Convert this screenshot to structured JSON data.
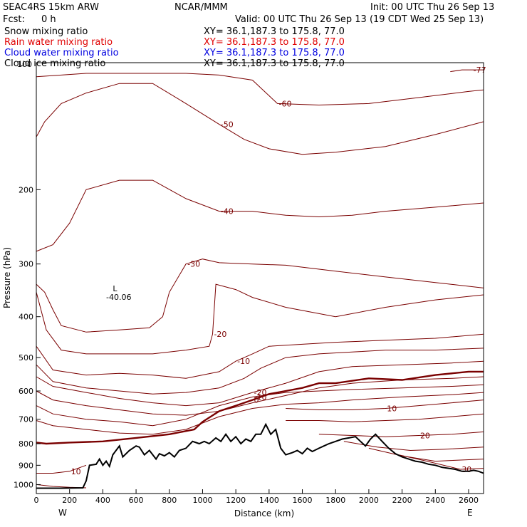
{
  "header": {
    "model": "SEAC4RS 15km ARW",
    "org": "NCAR/MMM",
    "init": "Init: 00 UTC Thu 26 Sep 13",
    "fcst_label": "Fcst:",
    "fcst_value": "0 h",
    "valid": "Valid: 00 UTC Thu 26 Sep 13 (19 CDT Wed 25 Sep 13)"
  },
  "fields": [
    {
      "name": "Snow mixing ratio",
      "xy": "XY=  36.1,187.3 to 175.8, 77.0",
      "color": "#000000"
    },
    {
      "name": "Rain water mixing ratio",
      "xy": "XY=  36.1,187.3 to 175.8, 77.0",
      "color": "#e00000"
    },
    {
      "name": "Cloud water mixing ratio",
      "xy": "XY=  36.1,187.3 to 175.8, 77.0",
      "color": "#0000e0"
    },
    {
      "name": "Cloud ice mixing ratio",
      "xy": "XY=  36.1,187.3 to 175.8, 77.0",
      "color": "#000000"
    }
  ],
  "colors": {
    "contour": "#7a0000",
    "zero_contour": "#7a0000",
    "terrain": "#000000",
    "frame": "#000000"
  },
  "chart_data": {
    "type": "line",
    "xlabel": "Distance (km)",
    "ylabel": "Pressure (hPa)",
    "xlim": [
      0,
      2690
    ],
    "ylim": [
      1050,
      100
    ],
    "y_scale": "log",
    "xticks": [
      "0",
      "200",
      "400",
      "600",
      "800",
      "1000",
      "1200",
      "1400",
      "1600",
      "1800",
      "2000",
      "2200",
      "2400",
      "2600"
    ],
    "yticks": [
      "200",
      "300",
      "400",
      "500",
      "600",
      "700",
      "800",
      "900",
      "1000"
    ],
    "top_tick_partial": "100",
    "end_labels": {
      "left": "W",
      "right": "E"
    },
    "low_label": {
      "text": "L",
      "value": "-40.06"
    },
    "series": [
      {
        "label": "-77",
        "x": [
          2490,
          2560,
          2620,
          2690
        ],
        "y": [
          105,
          104,
          104,
          104
        ]
      },
      {
        "label": "-60",
        "x": [
          0,
          300,
          600,
          900,
          1100,
          1300,
          1450,
          1700,
          2000,
          2300,
          2600,
          2690
        ],
        "y": [
          108,
          106,
          106,
          106,
          107,
          110,
          125,
          126,
          125,
          121,
          117,
          116
        ]
      },
      {
        "label": "-50",
        "x": [
          0,
          50,
          150,
          300,
          500,
          700,
          900,
          1100,
          1250,
          1400,
          1600,
          1800,
          2100,
          2400,
          2690
        ],
        "y": [
          150,
          138,
          125,
          118,
          112,
          112,
          125,
          140,
          152,
          160,
          165,
          163,
          158,
          148,
          138
        ]
      },
      {
        "label": "-40",
        "x": [
          0,
          100,
          200,
          300,
          500,
          700,
          900,
          1100,
          1300,
          1500,
          1700,
          1900,
          2100,
          2400,
          2690
        ],
        "y": [
          280,
          270,
          240,
          200,
          190,
          190,
          210,
          225,
          225,
          230,
          232,
          230,
          225,
          220,
          215
        ]
      },
      {
        "label": "-30",
        "x": [
          0,
          50,
          100,
          150,
          300,
          500,
          680,
          760,
          800,
          900,
          1000,
          1100,
          1300,
          1500,
          1800,
          2100,
          2400,
          2690
        ],
        "y": [
          335,
          350,
          385,
          420,
          435,
          430,
          425,
          400,
          350,
          300,
          292,
          298,
          300,
          302,
          312,
          322,
          332,
          342
        ]
      },
      {
        "label": "-20",
        "x": [
          0,
          60,
          150,
          300,
          500,
          700,
          900,
          1040,
          1060,
          1080,
          1200,
          1300,
          1500,
          1800,
          2100,
          2400,
          2690
        ],
        "y": [
          350,
          430,
          480,
          490,
          490,
          490,
          480,
          470,
          440,
          335,
          345,
          360,
          380,
          400,
          380,
          365,
          355
        ]
      },
      {
        "label": "-10",
        "x": [
          0,
          100,
          300,
          500,
          700,
          900,
          1100,
          1200,
          1300,
          1400,
          1600,
          1800,
          2100,
          2400,
          2690
        ],
        "y": [
          470,
          535,
          550,
          545,
          550,
          560,
          540,
          510,
          490,
          470,
          465,
          460,
          455,
          450,
          440
        ]
      },
      {
        "label": "",
        "x": [
          0,
          100,
          300,
          500,
          700,
          900,
          1100,
          1250,
          1350,
          1500,
          1700,
          1900,
          2100,
          2400,
          2690
        ],
        "y": [
          520,
          570,
          590,
          600,
          610,
          605,
          590,
          560,
          530,
          500,
          490,
          485,
          480,
          480,
          475
        ]
      },
      {
        "label": "-20",
        "x": [
          0,
          100,
          300,
          500,
          700,
          900,
          1100,
          1300,
          1500,
          1700,
          1900,
          2200,
          2500,
          2690
        ],
        "y": [
          555,
          585,
          605,
          625,
          640,
          650,
          640,
          605,
          575,
          540,
          525,
          520,
          515,
          510
        ]
      },
      {
        "label": "",
        "x": [
          0,
          100,
          300,
          500,
          700,
          900,
          1100,
          1300,
          1500,
          1700,
          1900,
          2200,
          2500,
          2690
        ],
        "y": [
          600,
          630,
          650,
          665,
          680,
          685,
          670,
          640,
          615,
          590,
          575,
          565,
          560,
          555
        ]
      },
      {
        "label": "-10",
        "x": [
          0,
          100,
          300,
          500,
          700,
          900,
          1100,
          1300,
          1500,
          1700,
          1900,
          2200,
          2500,
          2690
        ],
        "y": [
          650,
          680,
          700,
          710,
          725,
          700,
          650,
          620,
          605,
          600,
          595,
          590,
          585,
          580
        ]
      },
      {
        "label": "",
        "x": [
          0,
          100,
          300,
          500,
          700,
          900,
          1100,
          1300,
          1500,
          1700,
          1900,
          2200,
          2500,
          2690
        ],
        "y": [
          705,
          725,
          740,
          755,
          760,
          740,
          690,
          660,
          645,
          640,
          630,
          620,
          612,
          605
        ]
      },
      {
        "label": "0",
        "zero": true,
        "x": [
          0,
          60,
          200,
          400,
          600,
          800,
          950,
          1000,
          1100,
          1200,
          1300,
          1400,
          1500,
          1600,
          1700,
          1800,
          2000,
          2200,
          2400,
          2600,
          2690
        ],
        "y": [
          795,
          800,
          795,
          790,
          775,
          760,
          740,
          710,
          670,
          650,
          630,
          610,
          600,
          590,
          575,
          575,
          560,
          565,
          550,
          540,
          540
        ]
      },
      {
        "label": "10",
        "x": [
          1500,
          1700,
          1900,
          2100,
          2300,
          2500,
          2690
        ],
        "y": [
          660,
          665,
          665,
          660,
          650,
          640,
          630
        ]
      },
      {
        "label": "",
        "x": [
          1500,
          1700,
          1900,
          2100,
          2300,
          2500,
          2690
        ],
        "y": [
          705,
          705,
          710,
          705,
          700,
          690,
          680
        ]
      },
      {
        "label": "20",
        "x": [
          1700,
          1900,
          2100,
          2300,
          2500,
          2690
        ],
        "y": [
          760,
          765,
          770,
          765,
          760,
          750
        ]
      },
      {
        "label": "",
        "x": [
          1850,
          2050,
          2250,
          2450,
          2690
        ],
        "y": [
          790,
          815,
          830,
          825,
          815
        ]
      },
      {
        "label": "",
        "x": [
          2000,
          2200,
          2400,
          2690
        ],
        "y": [
          820,
          855,
          880,
          870
        ]
      },
      {
        "label": "30",
        "x": [
          2150,
          2350,
          2550,
          2690
        ],
        "y": [
          845,
          880,
          920,
          915
        ]
      },
      {
        "label": "10",
        "x": [
          0,
          100,
          200,
          300
        ],
        "y": [
          940,
          940,
          930,
          900
        ]
      },
      {
        "label": "",
        "x": [
          0,
          100,
          200,
          300
        ],
        "y": [
          1000,
          1010,
          1015,
          1018
        ]
      }
    ],
    "terrain": {
      "x": [
        0,
        150,
        280,
        300,
        320,
        360,
        380,
        400,
        420,
        440,
        460,
        500,
        520,
        560,
        600,
        620,
        650,
        680,
        720,
        740,
        770,
        800,
        830,
        860,
        900,
        940,
        980,
        1010,
        1040,
        1080,
        1110,
        1140,
        1170,
        1200,
        1230,
        1260,
        1290,
        1320,
        1350,
        1380,
        1410,
        1440,
        1470,
        1500,
        1540,
        1570,
        1600,
        1630,
        1660,
        1700,
        1730,
        1760,
        1800,
        1840,
        1880,
        1920,
        1950,
        1980,
        2010,
        2040,
        2080,
        2120,
        2160,
        2200,
        2240,
        2280,
        2320,
        2360,
        2400,
        2440,
        2480,
        2520,
        2560,
        2600,
        2630,
        2660,
        2690
      ],
      "y": [
        1020,
        1020,
        1018,
        980,
        900,
        895,
        870,
        900,
        880,
        905,
        850,
        810,
        860,
        830,
        810,
        815,
        850,
        830,
        870,
        845,
        855,
        840,
        860,
        830,
        820,
        790,
        800,
        790,
        800,
        775,
        790,
        760,
        790,
        770,
        800,
        780,
        790,
        760,
        760,
        720,
        760,
        740,
        820,
        850,
        840,
        830,
        845,
        820,
        835,
        820,
        810,
        800,
        790,
        780,
        775,
        770,
        790,
        810,
        780,
        760,
        790,
        820,
        845,
        860,
        870,
        880,
        885,
        895,
        900,
        910,
        915,
        920,
        930,
        930,
        925,
        930,
        940
      ]
    }
  }
}
